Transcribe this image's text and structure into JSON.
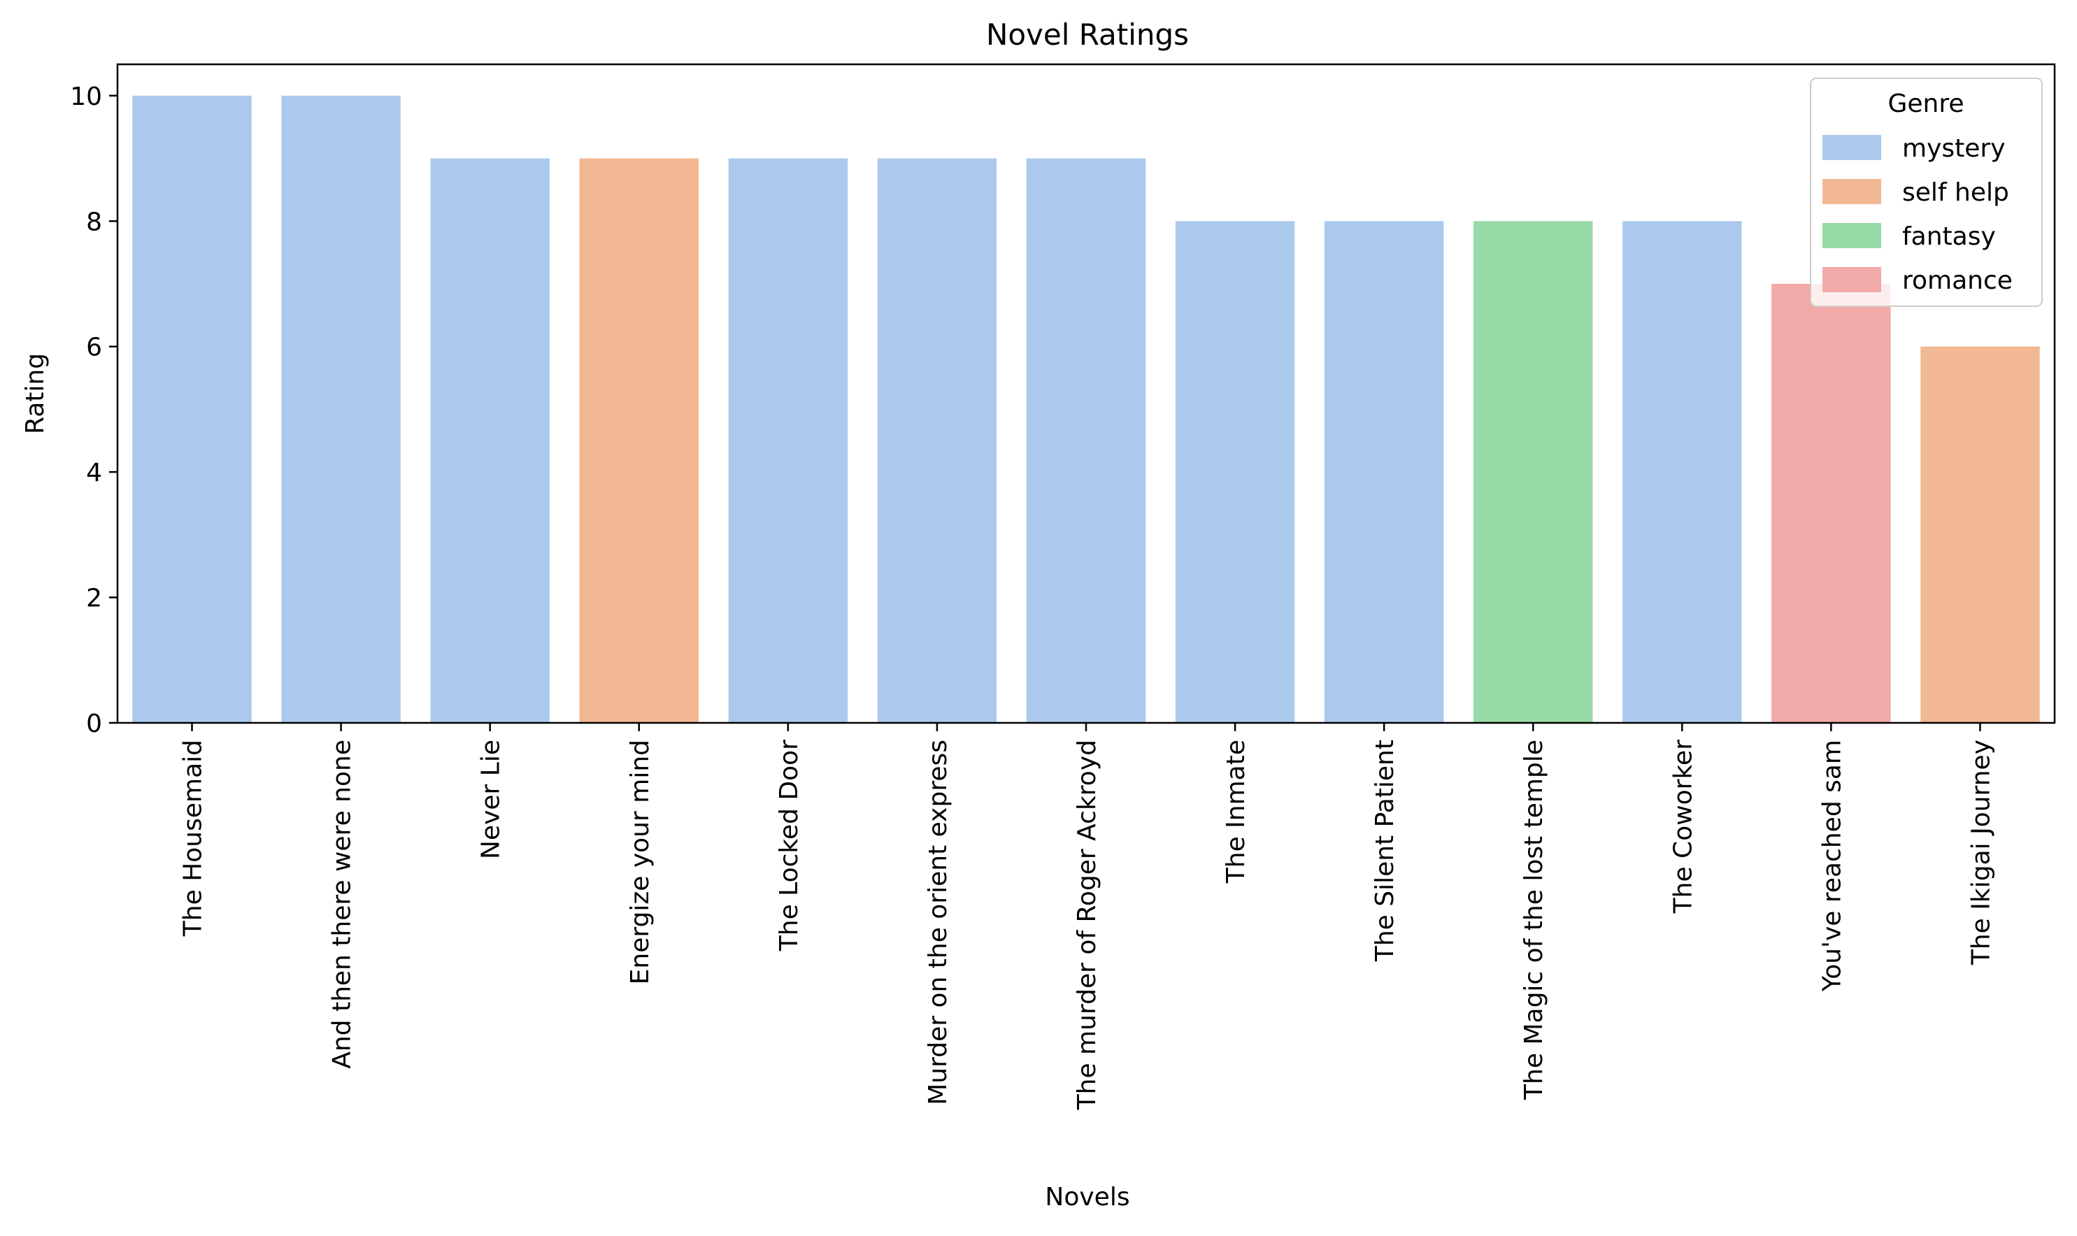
{
  "chart_data": {
    "type": "bar",
    "title": "Novel Ratings",
    "xlabel": "Novels",
    "ylabel": "Rating",
    "ylim": [
      0,
      10.5
    ],
    "yticks": [
      0,
      2,
      4,
      6,
      8,
      10
    ],
    "grid": false,
    "legend_position": "top-right",
    "categories": [
      "The Housemaid",
      "And then there were none",
      "Never Lie",
      "Energize your mind",
      "The Locked Door",
      "Murder on the orient express",
      "The murder of Roger Ackroyd",
      "The Inmate",
      "The Silent Patient",
      "The Magic of the lost temple",
      "The Coworker",
      "You've reached sam",
      "The Ikigai Journey"
    ],
    "values": [
      10,
      10,
      9,
      9,
      9,
      9,
      9,
      8,
      8,
      8,
      8,
      7,
      6
    ],
    "genres": [
      "mystery",
      "mystery",
      "mystery",
      "self help",
      "mystery",
      "mystery",
      "mystery",
      "mystery",
      "mystery",
      "fantasy",
      "mystery",
      "romance",
      "self help"
    ],
    "legend": {
      "title": "Genre",
      "entries": [
        {
          "name": "mystery",
          "color": "#abc9ed"
        },
        {
          "name": "self help",
          "color": "#f1b893"
        },
        {
          "name": "fantasy",
          "color": "#98daa7"
        },
        {
          "name": "romance",
          "color": "#f2aaa8"
        }
      ]
    }
  }
}
